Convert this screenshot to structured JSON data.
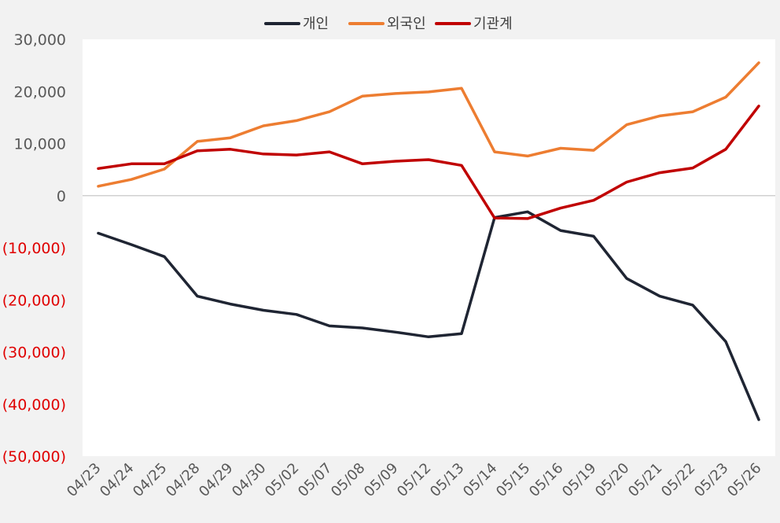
{
  "chart_data": {
    "type": "line",
    "title": "",
    "xlabel": "",
    "ylabel": "",
    "ylim": [
      -50000,
      30000
    ],
    "y_ticks": [
      30000,
      20000,
      10000,
      0,
      -10000,
      -20000,
      -30000,
      -40000,
      -50000
    ],
    "y_tick_labels": [
      "30,000",
      "20,000",
      "10,000",
      "0",
      "(10,000)",
      "(20,000)",
      "(30,000)",
      "(40,000)",
      "(50,000)"
    ],
    "negative_label_color": "#e00000",
    "positive_label_color": "#595959",
    "grid": false,
    "zero_line": true,
    "legend_position": "top",
    "categories": [
      "04/23",
      "04/24",
      "04/25",
      "04/28",
      "04/29",
      "04/30",
      "05/02",
      "05/07",
      "05/08",
      "05/09",
      "05/12",
      "05/13",
      "05/14",
      "05/15",
      "05/16",
      "05/19",
      "05/20",
      "05/21",
      "05/22",
      "05/23",
      "05/26"
    ],
    "series": [
      {
        "name": "개인",
        "color": "#1f2533",
        "values": [
          -7200,
          -9400,
          -11700,
          -19300,
          -20800,
          -22000,
          -22800,
          -25000,
          -25400,
          -26200,
          -27100,
          -26500,
          -4200,
          -3100,
          -6700,
          -7800,
          -15900,
          -19300,
          -21000,
          -28000,
          -43000
        ]
      },
      {
        "name": "외국인",
        "color": "#ed7d31",
        "values": [
          1800,
          3100,
          5100,
          10400,
          11100,
          13400,
          14400,
          16100,
          19100,
          19600,
          19900,
          20600,
          8400,
          7600,
          9100,
          8700,
          13600,
          15300,
          16100,
          18900,
          25500
        ]
      },
      {
        "name": "기관계",
        "color": "#c00000",
        "values": [
          5200,
          6100,
          6100,
          8600,
          8900,
          8000,
          7800,
          8400,
          6100,
          6600,
          6900,
          5800,
          -4300,
          -4400,
          -2400,
          -900,
          2600,
          4400,
          5300,
          8900,
          17200
        ]
      }
    ]
  }
}
